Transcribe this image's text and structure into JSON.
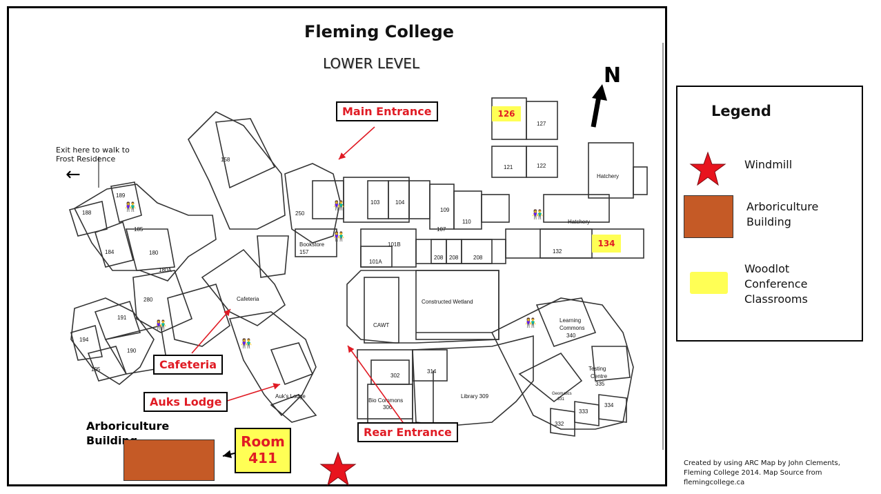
{
  "map": {
    "title": "Fleming College",
    "subtitle": "LOWER LEVEL",
    "north_label": "N",
    "exit_note_line1": "Exit here to walk to",
    "exit_note_line2": "Frost Residence",
    "exit_arrow": "←",
    "callouts": {
      "main_entrance": "Main Entrance",
      "cafeteria": "Cafeteria",
      "auks_lodge": "Auks Lodge",
      "rear_entrance": "Rear Entrance"
    },
    "arboriculture_line1": "Arboriculture",
    "arboriculture_line2": "Building",
    "room_line1": "Room",
    "room_line2": "411",
    "yellow_rooms": [
      "126",
      "134"
    ],
    "rooms": [
      "158",
      "189",
      "188",
      "185",
      "184",
      "180",
      "180A",
      "250",
      "280",
      "191",
      "194",
      "190",
      "195",
      "Cafeteria",
      "Auk's Lodge",
      "Bookstore",
      "157",
      "103",
      "104",
      "109",
      "107",
      "110",
      "101B",
      "101A",
      "208",
      "208",
      "208",
      "CAWT",
      "Constructed Wetland",
      "127",
      "121",
      "122",
      "Hatchery",
      "Hatchery",
      "132",
      "302",
      "314",
      "Bio Commons",
      "306",
      "Library 309",
      "Learning",
      "Commons",
      "340",
      "Testing",
      "Centre",
      "335",
      "Geomatics",
      "331",
      "332",
      "333",
      "334"
    ]
  },
  "legend": {
    "title": "Legend",
    "windmill": "Windmill",
    "arboriculture_line1": "Arboriculture",
    "arboriculture_line2": "Building",
    "woodlot_line1": "Woodlot",
    "woodlot_line2": "Conference",
    "woodlot_line3": "Classrooms"
  },
  "credit": {
    "line1": "Created by using ARC Map by John Clements,",
    "line2": "Fleming College 2014.  Map Source from",
    "line3": "flemingcollege.ca"
  },
  "colors": {
    "callout_text": "#e01b24",
    "arboriculture": "#c55a26",
    "woodlot": "#ffff55",
    "star": "#e8141e"
  }
}
